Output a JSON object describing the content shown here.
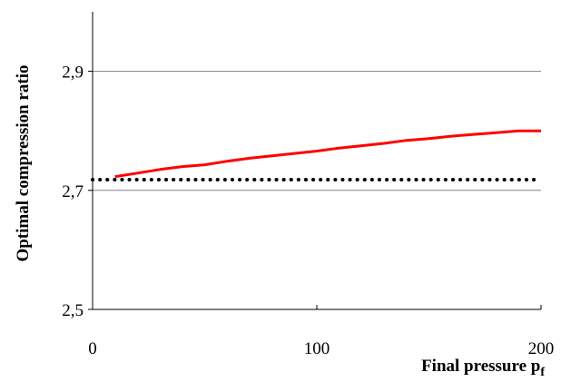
{
  "chart_data": {
    "type": "line",
    "xlabel": "Final pressure p",
    "xlabel_subscript": "f",
    "ylabel": "Optimal compression ratio",
    "xlim": [
      0,
      200
    ],
    "ylim": [
      2.5,
      3.0
    ],
    "x_ticks": [
      0,
      100,
      200
    ],
    "x_tick_labels": [
      "0",
      "100",
      "200"
    ],
    "y_ticks": [
      2.5,
      2.7,
      2.9
    ],
    "y_tick_labels": [
      "2,5",
      "2,7",
      "2,9"
    ],
    "grid": "horizontal",
    "legend": "none",
    "series": [
      {
        "style": "solid",
        "color": "#ff0000",
        "x": [
          10,
          20,
          30,
          40,
          50,
          60,
          70,
          80,
          90,
          100,
          110,
          120,
          130,
          140,
          150,
          160,
          170,
          180,
          190,
          200
        ],
        "y": [
          2.723,
          2.729,
          2.735,
          2.74,
          2.743,
          2.749,
          2.754,
          2.758,
          2.762,
          2.766,
          2.771,
          2.775,
          2.779,
          2.784,
          2.787,
          2.791,
          2.794,
          2.797,
          2.8,
          2.8
        ]
      },
      {
        "style": "dotted",
        "color": "#000000",
        "x": [
          0,
          200
        ],
        "y": [
          2.718,
          2.718
        ]
      }
    ]
  }
}
